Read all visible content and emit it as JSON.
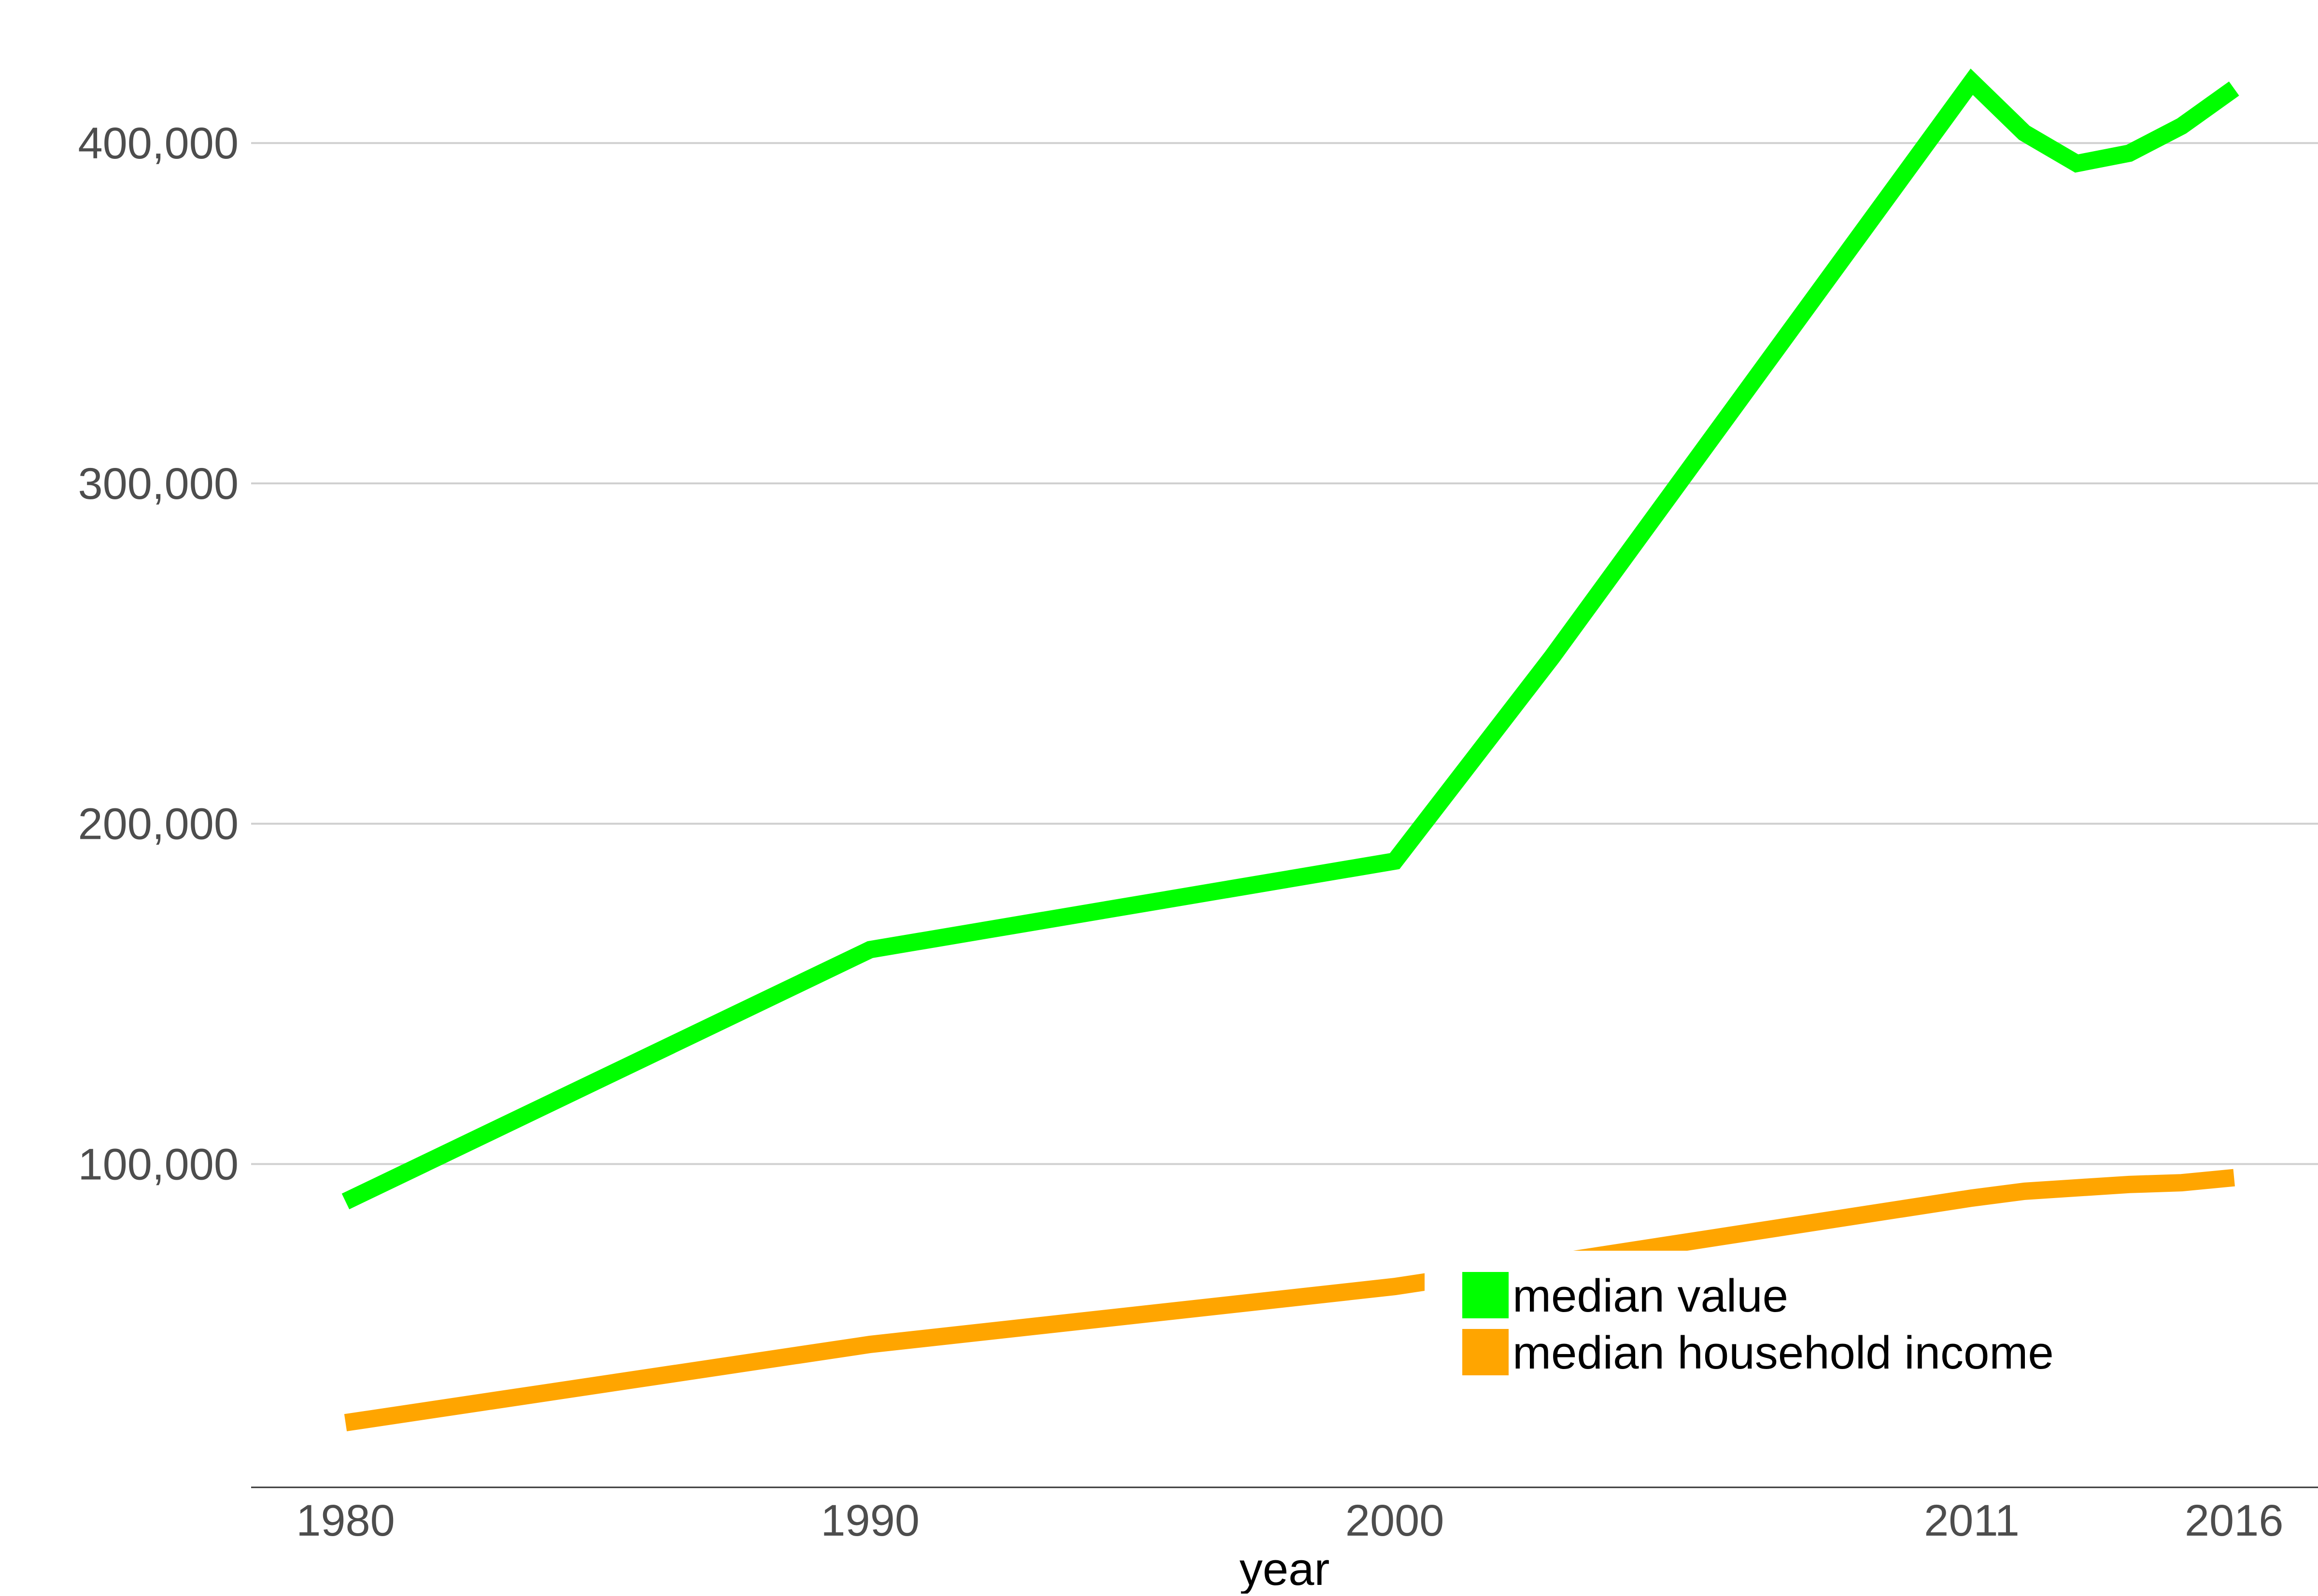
{
  "chart_data": {
    "type": "line",
    "title": "",
    "xlabel": "year",
    "ylabel": "",
    "x": [
      1980,
      1990,
      2000,
      2003,
      2011,
      2012,
      2013,
      2014,
      2015,
      2016
    ],
    "xlim": [
      1978.2,
      2017.6
    ],
    "ylim": [
      5000,
      425000
    ],
    "x_ticks": [
      1980,
      1990,
      2000,
      2011,
      2016
    ],
    "x_tick_labels": [
      "1980",
      "1990",
      "2000",
      "2011",
      "2016"
    ],
    "y_ticks": [
      100000,
      200000,
      300000,
      400000
    ],
    "y_tick_labels": [
      "100,000",
      "200,000",
      "300,000",
      "400,000"
    ],
    "grid": "horizontal",
    "legend": "center-bottom",
    "series": [
      {
        "name": "median value",
        "color": "#00ff00",
        "values": [
          89000,
          163000,
          189000,
          249000,
          418000,
          403000,
          394000,
          397000,
          405000,
          416000
        ]
      },
      {
        "name": "median household income",
        "color": "#ffa500",
        "values": [
          24000,
          47000,
          64000,
          71000,
          90000,
          92000,
          93000,
          94000,
          94500,
          96000
        ]
      }
    ]
  }
}
